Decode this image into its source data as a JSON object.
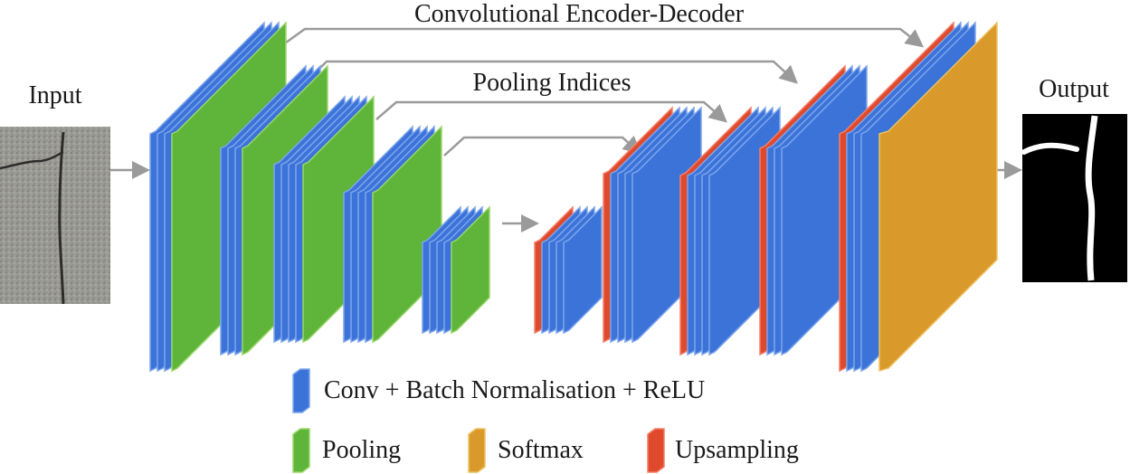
{
  "title_top": "Convolutional Encoder-Decoder",
  "title_skip": "Pooling Indices",
  "input_label": "Input",
  "output_label": "Output",
  "legend": [
    {
      "key": "conv",
      "label": "Conv + Batch Normalisation + ReLU",
      "color": "#3b73d9"
    },
    {
      "key": "pool",
      "label": "Pooling",
      "color": "#5fb43a"
    },
    {
      "key": "softmax",
      "label": "Softmax",
      "color": "#d99a2b"
    },
    {
      "key": "upsample",
      "label": "Upsampling",
      "color": "#e04a2c"
    }
  ],
  "colors": {
    "conv": "#3b73d9",
    "conv_edge": "#7fa6ec",
    "pool": "#5fb43a",
    "pool_edge": "#9ad86b",
    "softmax": "#d99a2b",
    "softmax_edge": "#f0c263",
    "upsample": "#e04a2c",
    "upsample_edge": "#f3806a",
    "arrow": "#9a9a9a"
  },
  "encoder": [
    {
      "stage": 1,
      "layers": [
        "conv",
        "conv",
        "conv",
        "pool"
      ]
    },
    {
      "stage": 2,
      "layers": [
        "conv",
        "conv",
        "conv",
        "pool"
      ]
    },
    {
      "stage": 3,
      "layers": [
        "conv",
        "conv",
        "conv",
        "conv",
        "pool"
      ]
    },
    {
      "stage": 4,
      "layers": [
        "conv",
        "conv",
        "conv",
        "conv",
        "pool"
      ]
    },
    {
      "stage": 5,
      "layers": [
        "conv",
        "conv",
        "conv",
        "conv",
        "pool"
      ]
    }
  ],
  "decoder": [
    {
      "stage": 5,
      "layers": [
        "upsample",
        "conv",
        "conv",
        "conv",
        "conv"
      ]
    },
    {
      "stage": 4,
      "layers": [
        "upsample",
        "conv",
        "conv",
        "conv",
        "conv"
      ]
    },
    {
      "stage": 3,
      "layers": [
        "upsample",
        "conv",
        "conv",
        "conv",
        "conv"
      ]
    },
    {
      "stage": 2,
      "layers": [
        "upsample",
        "conv",
        "conv",
        "conv"
      ]
    },
    {
      "stage": 1,
      "layers": [
        "upsample",
        "conv",
        "conv",
        "conv",
        "softmax"
      ]
    }
  ]
}
